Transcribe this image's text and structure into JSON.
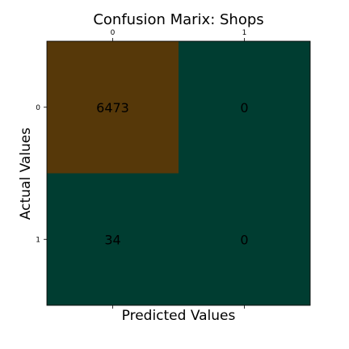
{
  "chart_data": {
    "type": "heatmap",
    "title": "Confusion Marix: Shops",
    "xlabel": "Predicted Values",
    "ylabel": "Actual Values",
    "x_tick_labels": [
      "0",
      "1"
    ],
    "y_tick_labels": [
      "0",
      "1"
    ],
    "x_ticks_position": "top",
    "x_label_position": "bottom",
    "grid": false,
    "matrix": [
      [
        6473,
        0
      ],
      [
        34,
        0
      ]
    ],
    "cell_labels": [
      [
        "6473",
        "0"
      ],
      [
        "34",
        "0"
      ]
    ],
    "colors": {
      "high": "#563809",
      "low": "#003d31"
    }
  }
}
